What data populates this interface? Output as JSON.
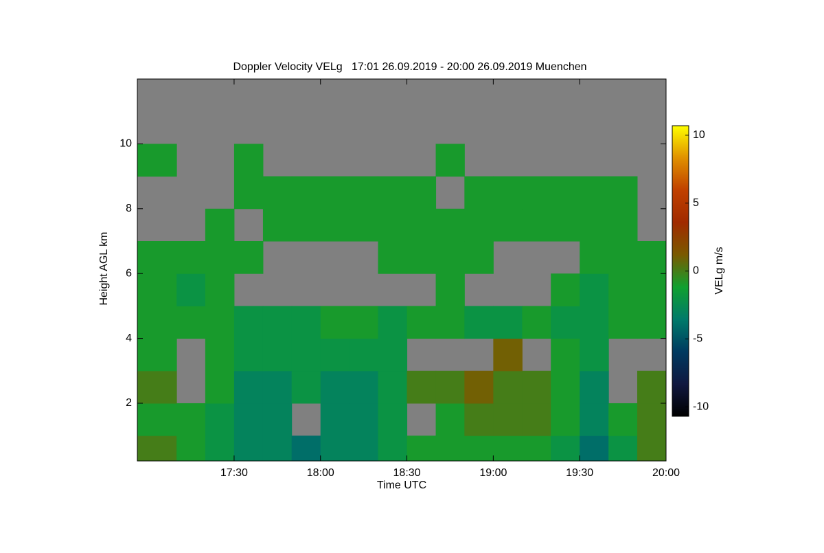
{
  "chart_data": {
    "type": "heatmap",
    "title": "Doppler Velocity VELg   17:01 26.09.2019 - 20:00 26.09.2019 Muenchen",
    "x_label": "Time UTC",
    "y_label": "Height AGL km",
    "colorbar_label": "VELg m/s",
    "xbins": [
      16.94,
      17.167,
      17.333,
      17.5,
      17.667,
      17.833,
      18,
      18.167,
      18.333,
      18.5,
      18.667,
      18.833,
      19,
      19.167,
      19.333,
      19.5,
      19.667,
      19.833,
      20
    ],
    "ybins": [
      0.22,
      1,
      2,
      3,
      4,
      5,
      6,
      7,
      8,
      9,
      10,
      11,
      12
    ],
    "values": [
      [
        0,
        -1,
        -2,
        -3,
        -3,
        -4,
        -3,
        -3,
        -2,
        -1,
        -1,
        -1,
        -1,
        -1,
        -2,
        -4,
        -2,
        0
      ],
      [
        -1,
        -1,
        -2,
        -3,
        -3,
        null,
        -3,
        -3,
        -2,
        null,
        -1,
        0,
        0,
        0,
        -1,
        -3,
        -1,
        0
      ],
      [
        0,
        null,
        -1,
        -3,
        -3,
        -2,
        -3,
        -3,
        -2,
        0,
        0,
        1,
        0,
        0,
        -1,
        -3,
        null,
        0
      ],
      [
        -1,
        null,
        -1,
        -2,
        -2,
        -2,
        -2,
        -2,
        -2,
        null,
        null,
        null,
        1,
        null,
        -1,
        -2,
        null,
        null
      ],
      [
        -1,
        -1,
        -1,
        -2,
        -2,
        -2,
        -1,
        -1,
        -2,
        -1,
        -1,
        -2,
        -2,
        -1,
        -2,
        -2,
        -1,
        -1
      ],
      [
        -1,
        -2,
        -1,
        null,
        null,
        null,
        null,
        null,
        null,
        null,
        -1,
        null,
        null,
        null,
        -1,
        -2,
        -1,
        -1
      ],
      [
        -1,
        -1,
        -1,
        -1,
        null,
        null,
        null,
        null,
        -1,
        -1,
        -1,
        -1,
        null,
        null,
        null,
        -1,
        -1,
        -1
      ],
      [
        null,
        null,
        -1,
        null,
        -1,
        -1,
        -1,
        -1,
        -1,
        -1,
        -1,
        -1,
        -1,
        -1,
        -1,
        -1,
        -1,
        null
      ],
      [
        null,
        null,
        null,
        -1,
        -1,
        -1,
        -1,
        -1,
        -1,
        -1,
        null,
        -1,
        -1,
        -1,
        -1,
        -1,
        -1,
        null
      ],
      [
        -1,
        null,
        null,
        -1,
        null,
        null,
        null,
        null,
        null,
        null,
        -1,
        null,
        null,
        null,
        null,
        null,
        null,
        null
      ],
      [
        null,
        null,
        null,
        null,
        null,
        null,
        null,
        null,
        null,
        null,
        null,
        null,
        null,
        null,
        null,
        null,
        null,
        null
      ],
      [
        null,
        null,
        null,
        null,
        null,
        null,
        null,
        null,
        null,
        null,
        null,
        null,
        null,
        null,
        null,
        null,
        null,
        null
      ]
    ],
    "xlim": [
      16.94,
      20
    ],
    "xticks": [
      {
        "value": 17.5,
        "label": "17:30"
      },
      {
        "value": 18,
        "label": "18:00"
      },
      {
        "value": 18.5,
        "label": "18:30"
      },
      {
        "value": 19,
        "label": "19:00"
      },
      {
        "value": 19.5,
        "label": "19:30"
      },
      {
        "value": 20,
        "label": "20:00"
      }
    ],
    "ylim": [
      0.22,
      12
    ],
    "yticks": [
      2,
      4,
      6,
      8,
      10
    ],
    "clim": [
      -10.7,
      10.7
    ],
    "cticks": [
      -10,
      -5,
      0,
      5,
      10
    ],
    "missing_color": "#808080",
    "colormap": [
      "#000000",
      "#101840",
      "#003a60",
      "#007a6a",
      "#10a030",
      "#7a5a00",
      "#a02a00",
      "#c04000",
      "#e09000",
      "#ffff00"
    ]
  }
}
